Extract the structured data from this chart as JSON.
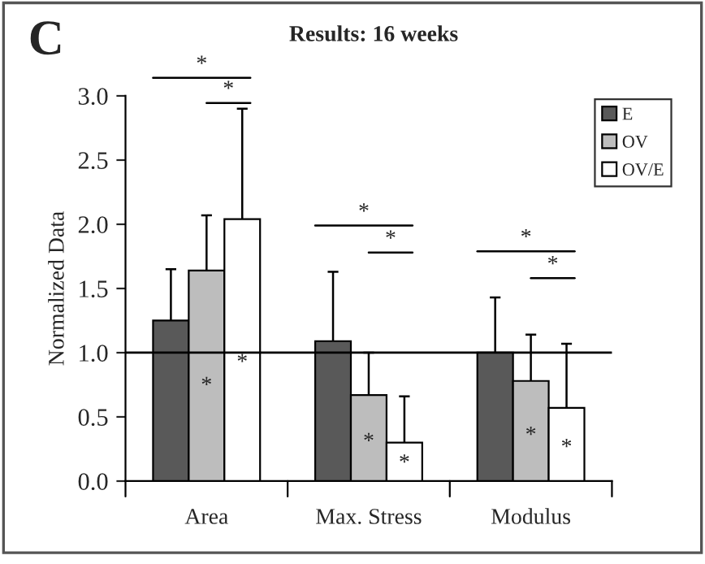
{
  "chart_data": {
    "type": "bar",
    "title": "Results: 16 weeks",
    "ylabel": "Normalized Data",
    "categories": [
      "Area",
      "Max. Stress",
      "Modulus"
    ],
    "series": [
      {
        "name": "E",
        "color": "#595959",
        "values": [
          1.25,
          1.09,
          1.0
        ],
        "errors": [
          [
            1.25,
            1.65
          ],
          [
            1.09,
            1.63
          ],
          [
            1.0,
            1.43
          ]
        ]
      },
      {
        "name": "OV",
        "color": "#bdbdbd",
        "values": [
          1.64,
          0.67,
          0.78
        ],
        "errors": [
          [
            1.64,
            2.07
          ],
          [
            0.67,
            1.0
          ],
          [
            0.78,
            1.14
          ]
        ],
        "value_labels": [
          "*",
          "*",
          "*"
        ]
      },
      {
        "name": "OV/E",
        "color": "#ffffff",
        "values": [
          2.04,
          0.3,
          0.57
        ],
        "errors": [
          [
            2.04,
            2.9
          ],
          [
            0.3,
            0.66
          ],
          [
            0.57,
            1.07
          ]
        ],
        "value_labels": [
          "*",
          "*",
          "*"
        ]
      }
    ],
    "ylim": [
      0,
      3.0
    ],
    "yticks": [
      {
        "value": 0,
        "label": "0.0"
      },
      {
        "value": 0.5,
        "label": "0.5"
      },
      {
        "value": 1.0,
        "label": "1.0"
      },
      {
        "value": 1.5,
        "label": "1.5"
      },
      {
        "value": 2.0,
        "label": "2.0"
      },
      {
        "value": 2.5,
        "label": "2.5"
      },
      {
        "value": 3.0,
        "label": "3.0"
      }
    ],
    "ref_lines": [
      {
        "axis": "y",
        "value": 1.0,
        "color": "#000000"
      }
    ],
    "annotations": [
      "C",
      "*",
      "*",
      "*",
      "*",
      "*",
      "*"
    ],
    "legend": "top right",
    "grid": false
  }
}
